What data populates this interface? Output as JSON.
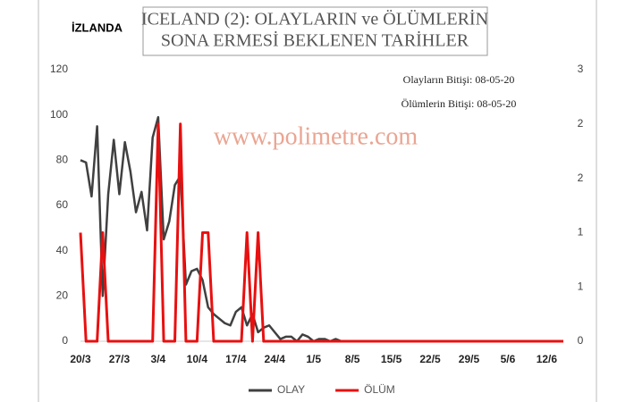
{
  "chart_data": {
    "type": "line",
    "title": [
      "ICELAND (2): OLAYLARIN  ve ÖLÜMLERİN",
      "SONA ERMESİ BEKLENEN TARİHLER"
    ],
    "country_label": "İZLANDA",
    "annotations": [
      "Olayların Bitişi: 08-05-20",
      "Ölümlerin Bitişi: 08-05-20"
    ],
    "watermark": "www.polimetre.com",
    "categories": [
      "20/3",
      null,
      null,
      null,
      null,
      null,
      null,
      "27/3",
      null,
      null,
      null,
      null,
      null,
      null,
      "3/4",
      null,
      null,
      null,
      null,
      null,
      null,
      "10/4",
      null,
      null,
      null,
      null,
      null,
      null,
      "17/4",
      null,
      null,
      null,
      null,
      null,
      null,
      "24/4",
      null,
      null,
      null,
      null,
      null,
      null,
      "1/5",
      null,
      null,
      null,
      null,
      null,
      null,
      "8/5",
      null,
      null,
      null,
      null,
      null,
      null,
      "15/5",
      null,
      null,
      null,
      null,
      null,
      null,
      "22/5",
      null,
      null,
      null,
      null,
      null,
      null,
      "29/5",
      null,
      null,
      null,
      null,
      null,
      null,
      "5/6",
      null,
      null,
      null,
      null,
      null,
      null,
      "12/6",
      null,
      null,
      null
    ],
    "series": [
      {
        "name": "OLAY",
        "color": "#404040",
        "values": [
          80,
          79,
          64,
          95,
          20,
          65,
          89,
          65,
          88,
          75,
          57,
          66,
          49,
          90,
          99,
          45,
          53,
          69,
          73,
          25,
          31,
          32,
          27,
          15,
          12,
          10,
          8,
          7,
          13,
          15,
          7,
          12,
          4,
          6,
          7,
          4,
          1,
          2,
          2,
          0,
          3,
          2,
          0,
          1,
          1,
          0,
          1,
          0,
          0,
          0,
          0,
          0,
          0,
          0,
          0,
          0,
          0,
          0,
          0,
          0,
          0,
          0,
          0,
          0,
          0,
          0,
          0,
          0,
          0,
          0,
          0,
          0,
          0,
          0,
          0,
          0,
          0,
          0,
          0,
          0,
          0,
          0,
          0,
          0,
          0,
          0,
          0,
          0
        ]
      },
      {
        "name": "ÖLÜM",
        "color": "#e81010",
        "axis": "y2",
        "values": [
          1,
          0,
          0,
          0,
          1,
          0,
          0,
          0,
          0,
          0,
          0,
          0,
          0,
          0,
          2,
          0,
          0,
          0,
          2,
          0,
          0,
          0,
          1,
          1,
          0,
          0,
          0,
          0,
          0,
          0,
          1,
          0,
          1,
          0,
          0,
          0,
          0,
          0,
          0,
          0,
          0,
          0,
          0,
          0,
          0,
          0,
          0,
          0,
          0,
          0,
          0,
          0,
          0,
          0,
          0,
          0,
          0,
          0,
          0,
          0,
          0,
          0,
          0,
          0,
          0,
          0,
          0,
          0,
          0,
          0,
          0,
          0,
          0,
          0,
          0,
          0,
          0,
          0,
          0,
          0,
          0,
          0,
          0,
          0,
          0,
          0,
          0,
          0
        ]
      }
    ],
    "ylim": [
      0,
      120
    ],
    "yticks": [
      0,
      20,
      40,
      60,
      80,
      100,
      120
    ],
    "y2lim": [
      0,
      2.5
    ],
    "y2ticks": [
      0,
      {
        "value": 0.5,
        "label": "1"
      },
      {
        "value": 1,
        "label": "1"
      },
      {
        "value": 1.5,
        "label": "2"
      },
      {
        "value": 2,
        "label": "2"
      },
      {
        "value": 2.5,
        "label": "3"
      }
    ],
    "grid": false,
    "legend": "bottom"
  }
}
